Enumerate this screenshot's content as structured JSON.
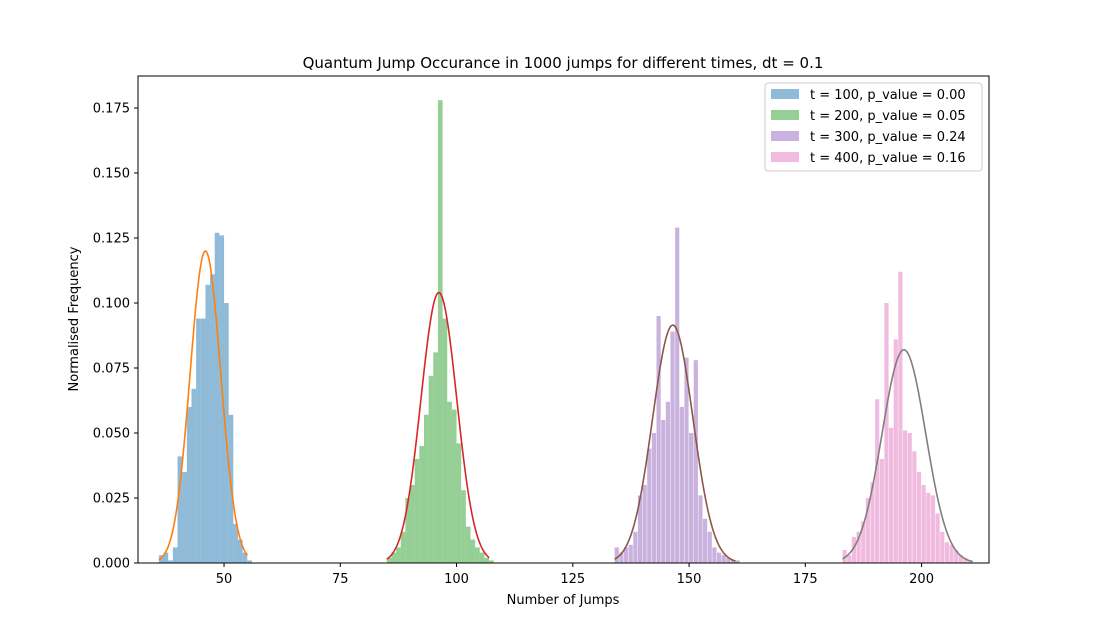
{
  "chart_data": {
    "type": "bar",
    "title": "Quantum Jump Occurance in 1000 jumps for different times, dt = 0.1",
    "xlabel": "Number of Jumps",
    "ylabel": "Normalised Frequency",
    "xlim": [
      31.5,
      214.5
    ],
    "ylim": [
      0,
      0.1873
    ],
    "xticks": [
      50,
      75,
      100,
      125,
      150,
      175,
      200
    ],
    "xtick_labels": [
      "50",
      "75",
      "100",
      "125",
      "150",
      "175",
      "200"
    ],
    "yticks": [
      0.0,
      0.025,
      0.05,
      0.075,
      0.1,
      0.125,
      0.15,
      0.175
    ],
    "ytick_labels": [
      "0.000",
      "0.025",
      "0.050",
      "0.075",
      "0.100",
      "0.125",
      "0.150",
      "0.175"
    ],
    "grid": false,
    "legend_position": "top-right",
    "series": [
      {
        "name": "t = 100, p_value = 0.00",
        "color": "#1f77b4",
        "fit_color": "#ff7f0e",
        "bins": [
          36,
          37,
          38,
          39,
          40,
          41,
          42,
          43,
          44,
          45,
          46,
          47,
          48,
          49,
          50,
          51,
          52,
          53,
          54,
          55
        ],
        "bin_width": 1,
        "values": [
          0.003,
          0.004,
          0.001,
          0.006,
          0.041,
          0.035,
          0.06,
          0.067,
          0.094,
          0.094,
          0.107,
          0.111,
          0.127,
          0.126,
          0.1,
          0.057,
          0.015,
          0.009,
          0.004,
          0.001
        ],
        "fit": {
          "mean": 46.0,
          "sd": 3.3,
          "peak": 0.12,
          "x_range": [
            36,
            55
          ]
        }
      },
      {
        "name": "t = 200, p_value = 0.05",
        "color": "#2ca02c",
        "fit_color": "#d62728",
        "bins": [
          85,
          86,
          87,
          88,
          89,
          90,
          91,
          92,
          93,
          94,
          95,
          96,
          97,
          98,
          99,
          100,
          101,
          102,
          103,
          104,
          105,
          106,
          107
        ],
        "bin_width": 1,
        "values": [
          0.002,
          0.004,
          0.006,
          0.012,
          0.025,
          0.03,
          0.04,
          0.045,
          0.057,
          0.072,
          0.081,
          0.178,
          0.094,
          0.062,
          0.059,
          0.046,
          0.028,
          0.014,
          0.009,
          0.006,
          0.004,
          0.002,
          0.001
        ],
        "fit": {
          "mean": 96.2,
          "sd": 3.85,
          "peak": 0.104,
          "x_range": [
            85,
            107
          ]
        }
      },
      {
        "name": "t = 300, p_value = 0.24",
        "color": "#9467bd",
        "fit_color": "#8c564b",
        "bins": [
          134,
          135,
          136,
          137,
          138,
          139,
          140,
          141,
          142,
          143,
          144,
          145,
          146,
          147,
          148,
          149,
          150,
          151,
          152,
          153,
          154,
          155,
          156,
          157,
          158,
          159,
          160
        ],
        "bin_width": 0.9,
        "values": [
          0.006,
          0.004,
          0.006,
          0.007,
          0.012,
          0.026,
          0.03,
          0.044,
          0.05,
          0.095,
          0.055,
          0.062,
          0.089,
          0.129,
          0.06,
          0.079,
          0.05,
          0.078,
          0.026,
          0.017,
          0.012,
          0.006,
          0.004,
          0.003,
          0.002,
          0.001,
          0.001
        ],
        "fit": {
          "mean": 146.5,
          "sd": 4.35,
          "peak": 0.0915,
          "x_range": [
            134,
            160
          ]
        }
      },
      {
        "name": "t = 400, p_value = 0.16",
        "color": "#e377c2",
        "fit_color": "#7f7f7f",
        "bins": [
          183,
          184,
          185,
          186,
          187,
          188,
          189,
          190,
          191,
          192,
          193,
          194,
          195,
          196,
          197,
          198,
          199,
          200,
          201,
          202,
          203,
          204,
          205,
          206,
          207,
          208,
          209,
          210
        ],
        "bin_width": 0.9,
        "values": [
          0.005,
          0.003,
          0.01,
          0.012,
          0.016,
          0.025,
          0.031,
          0.063,
          0.04,
          0.1,
          0.052,
          0.086,
          0.112,
          0.051,
          0.05,
          0.043,
          0.035,
          0.03,
          0.027,
          0.026,
          0.019,
          0.012,
          0.008,
          0.007,
          0.005,
          0.003,
          0.002,
          0.001
        ],
        "fit": {
          "mean": 196.2,
          "sd": 4.7,
          "peak": 0.082,
          "x_range": [
            183,
            211
          ]
        }
      }
    ]
  }
}
